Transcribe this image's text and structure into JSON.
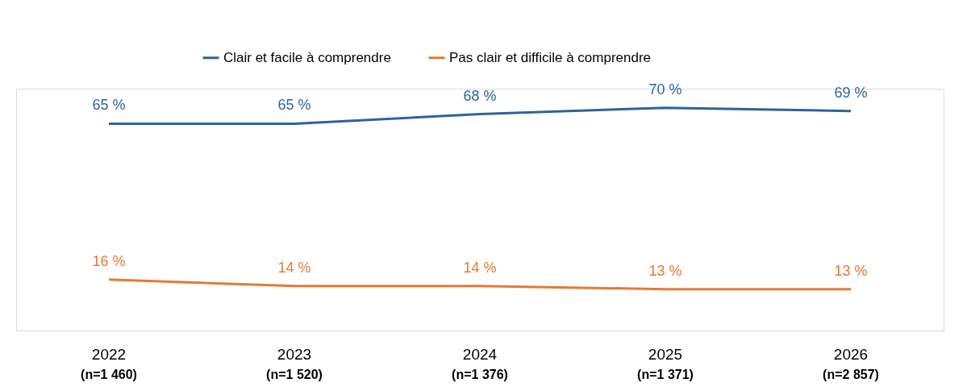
{
  "chart_data": {
    "type": "line",
    "categories": [
      "2022\n(n=1 460)",
      "2023\n(n=1 520)",
      "2024\n(n=1 376)",
      "2025\n(n=1 371)",
      "2026\n(n=2 857)"
    ],
    "ylim": [
      0,
      76
    ],
    "legend": "top",
    "marker": "none",
    "line_style": "solid",
    "series": [
      {
        "name": "Clair et facile à comprendre",
        "color": "#2e6496",
        "values": [
          65,
          65,
          68,
          70,
          69
        ],
        "value_labels": [
          "65 %",
          "65 %",
          "68 %",
          "70 %",
          "69 %"
        ]
      },
      {
        "name": "Pas clair et difficile à comprendre",
        "color": "#e57a35",
        "values": [
          16,
          14,
          14,
          13,
          13
        ],
        "value_labels": [
          "16 %",
          "14 %",
          "14 %",
          "13 %",
          "13 %"
        ]
      }
    ]
  }
}
